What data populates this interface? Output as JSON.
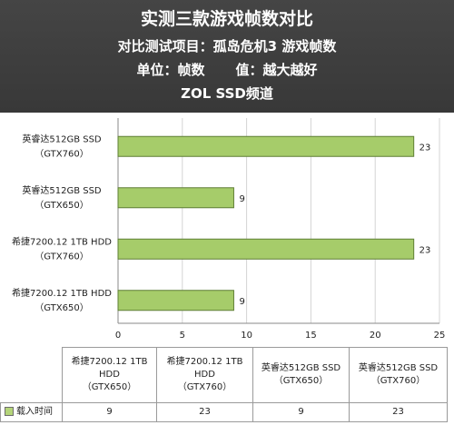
{
  "header": {
    "title": "实测三款游戏帧数对比",
    "subtitle": "对比测试项目：孤岛危机3 游戏帧数",
    "unit_label": "单位：帧数",
    "value_label": "值：越大越好",
    "channel": "ZOL SSD频道"
  },
  "chart_data": {
    "type": "bar",
    "orientation": "horizontal",
    "categories": [
      "英睿达512GB SSD（GTX760）",
      "英睿达512GB SSD（GTX650）",
      "希捷7200.12 1TB HDD（GTX760）",
      "希捷7200.12 1TB HDD（GTX650）"
    ],
    "category_lines": [
      [
        "英睿达512GB SSD",
        "（GTX760）"
      ],
      [
        "英睿达512GB SSD",
        "（GTX650）"
      ],
      [
        "希捷7200.12 1TB HDD",
        "（GTX760）"
      ],
      [
        "希捷7200.12 1TB HDD",
        "（GTX650）"
      ]
    ],
    "series": [
      {
        "name": "载入时间",
        "values": [
          23,
          9,
          23,
          9
        ],
        "color": "#a6cc6a"
      }
    ],
    "xlim": [
      0,
      25
    ],
    "xticks": [
      0,
      5,
      10,
      15,
      20,
      25
    ],
    "grid": true,
    "legend": "bottom-left (data table)"
  },
  "data_table": {
    "columns": [
      [
        "希捷7200.12 1TB",
        "HDD",
        "（GTX650）"
      ],
      [
        "希捷7200.12 1TB",
        "HDD",
        "（GTX760）"
      ],
      [
        "英睿达512GB SSD",
        "（GTX650）"
      ],
      [
        "英睿达512GB SSD",
        "（GTX760）"
      ]
    ],
    "series_label": "载入时间",
    "values": [
      "9",
      "23",
      "9",
      "23"
    ]
  }
}
